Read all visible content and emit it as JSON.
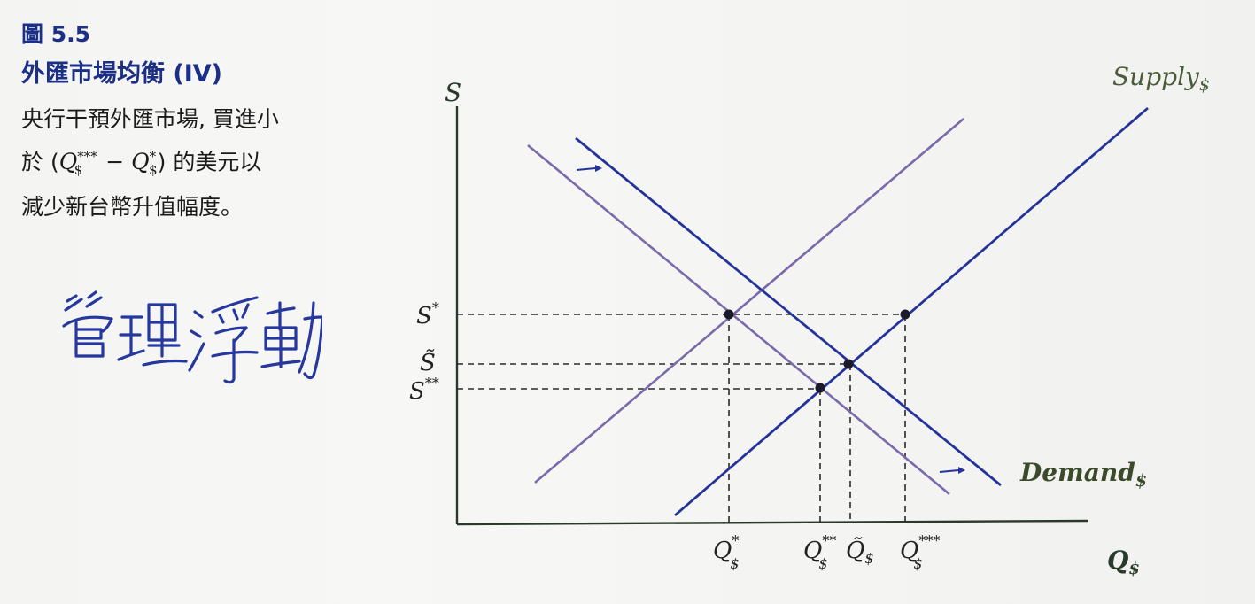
{
  "figure": {
    "number": "圖 5.5",
    "title": "外匯市場均衡 (IV)",
    "description": {
      "line1": "央行干預外匯市場, 買進小",
      "line2_pre": "於 (",
      "line2_q1": "Q",
      "line2_q1_sub": "$",
      "line2_q1_sup": "***",
      "line2_minus": " − ",
      "line2_q2": "Q",
      "line2_q2_sub": "$",
      "line2_q2_sup": "*",
      "line2_post": ") 的美元以",
      "line3": "減少新台幣升值幅度。"
    }
  },
  "handwriting": "管理浮動",
  "diagram": {
    "y_axis_label": "S",
    "x_axis_label": "Q",
    "x_axis_sub": "$",
    "supply_label": "Supply",
    "supply_sub": "$",
    "demand_label": "Demand",
    "demand_sub": "$",
    "y_ticks": [
      {
        "label": "S",
        "sup": "*"
      },
      {
        "label": "S̃",
        "sup": ""
      },
      {
        "label": "S",
        "sup": "**"
      }
    ],
    "x_ticks": [
      {
        "label": "Q",
        "sub": "$",
        "sup": "*"
      },
      {
        "label": "Q",
        "sub": "$",
        "sup": "**"
      },
      {
        "label": "Q̃",
        "sub": "$",
        "sup": ""
      },
      {
        "label": "Q",
        "sub": "$",
        "sup": "***"
      }
    ],
    "colors": {
      "original_curves": "#7a6aaa",
      "shifted_curves": "#23339a",
      "axis": "#2a3a2a",
      "points": "#1a1a2a",
      "dashed": "#2a2a2a",
      "curve_label": "#4a5a3a"
    }
  }
}
